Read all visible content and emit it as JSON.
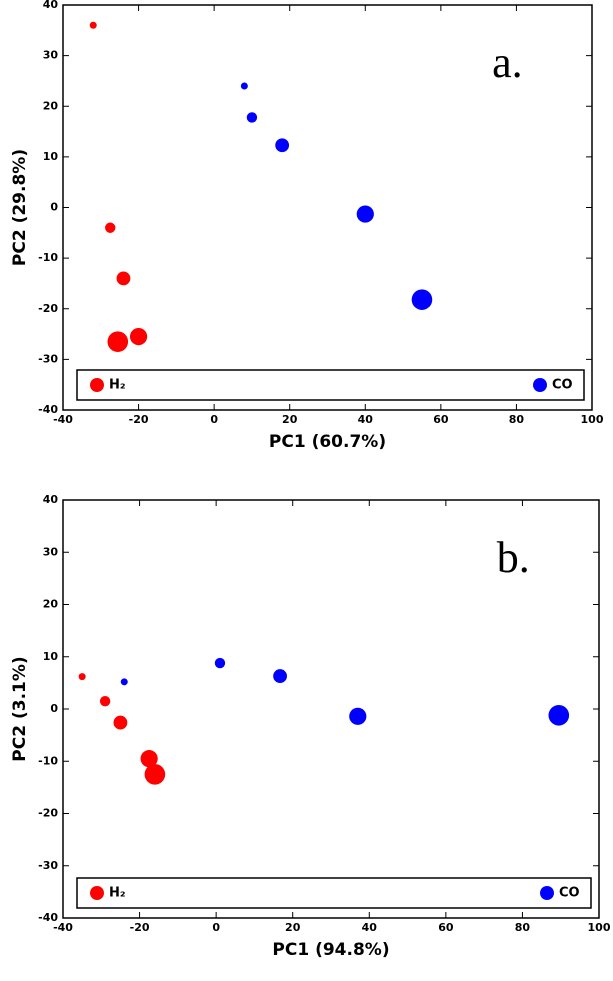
{
  "chart_data": [
    {
      "type": "scatter",
      "annotation": "a.",
      "x_label": "PC1  (60.7%)",
      "y_label": "PC2  (29.8%)",
      "xlim": [
        -40,
        100
      ],
      "ylim": [
        -40,
        40
      ],
      "xticks": [
        -40,
        -20,
        0,
        20,
        40,
        60,
        80,
        100
      ],
      "yticks": [
        -40,
        -30,
        -20,
        -10,
        0,
        10,
        20,
        30,
        40
      ],
      "legend": "bottom",
      "series": [
        {
          "name": "H₂",
          "color": "#ff0000",
          "x": [
            -32,
            -27.5,
            -24,
            -20,
            -25.5
          ],
          "values": [
            36,
            -4,
            -14,
            -25.5,
            -26.5
          ],
          "sizes": [
            1,
            2,
            3,
            4,
            5
          ]
        },
        {
          "name": "CO",
          "color": "#0000ff",
          "x": [
            8,
            10,
            18,
            40,
            55
          ],
          "values": [
            24,
            17.8,
            12.3,
            -1.3,
            -18.2
          ],
          "sizes": [
            1,
            2,
            3,
            4,
            5
          ]
        }
      ]
    },
    {
      "type": "scatter",
      "annotation": "b.",
      "x_label": "PC1  (94.8%)",
      "y_label": "PC2  (3.1%)",
      "xlim": [
        -40,
        100
      ],
      "ylim": [
        -40,
        40
      ],
      "xticks": [
        -40,
        -20,
        0,
        20,
        40,
        60,
        80,
        100
      ],
      "yticks": [
        -40,
        -30,
        -20,
        -10,
        0,
        10,
        20,
        30,
        40
      ],
      "legend": "bottom",
      "series": [
        {
          "name": "H₂",
          "color": "#ff0000",
          "x": [
            -35,
            -29,
            -25,
            -17.5,
            -16
          ],
          "values": [
            6.2,
            1.5,
            -2.6,
            -9.5,
            -12.5
          ],
          "sizes": [
            1,
            2,
            3,
            4,
            5
          ]
        },
        {
          "name": "CO",
          "color": "#0000ff",
          "x": [
            -24,
            1,
            16.7,
            37,
            89.5
          ],
          "values": [
            5.2,
            8.8,
            6.3,
            -1.4,
            -1.2
          ],
          "sizes": [
            1,
            2,
            3,
            4,
            5
          ]
        }
      ]
    }
  ]
}
